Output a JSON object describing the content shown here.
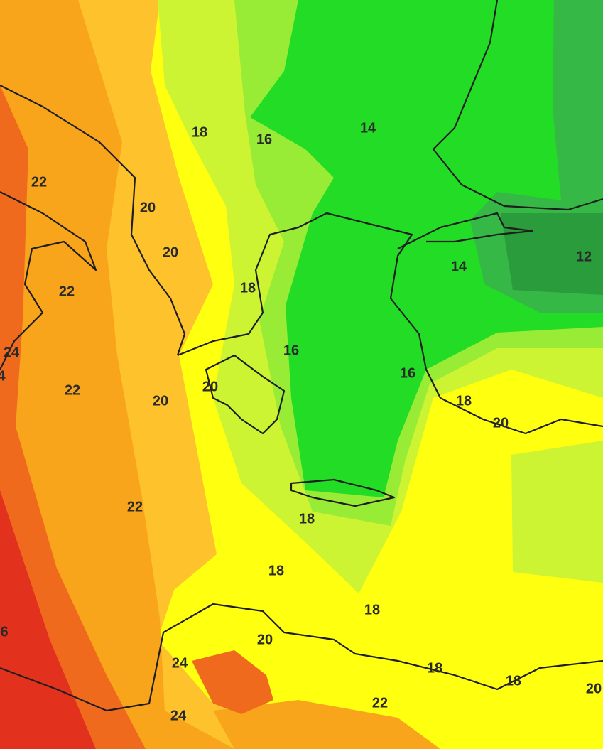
{
  "contour_labels": [
    "18",
    "16",
    "14",
    "22",
    "20",
    "20",
    "14",
    "12",
    "22",
    "18",
    "24",
    "4",
    "16",
    "16",
    "22",
    "20",
    "20",
    "18",
    "20",
    "22",
    "18",
    "18",
    "18",
    "6",
    "20",
    "24",
    "18",
    "18",
    "20",
    "22",
    "24"
  ]
}
